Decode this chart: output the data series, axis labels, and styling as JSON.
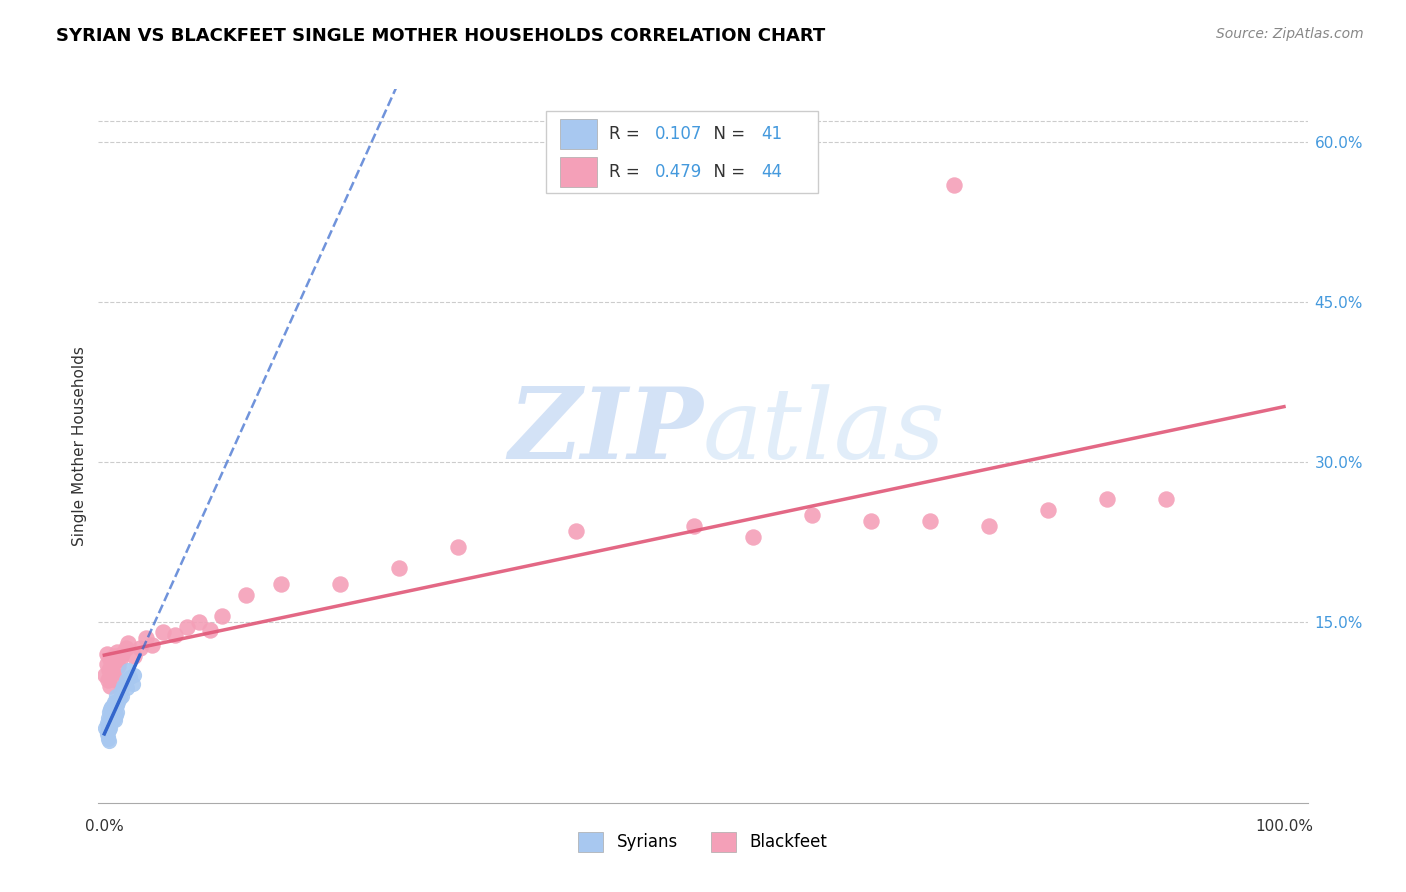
{
  "title": "SYRIAN VS BLACKFEET SINGLE MOTHER HOUSEHOLDS CORRELATION CHART",
  "source": "Source: ZipAtlas.com",
  "ylabel": "Single Mother Households",
  "r_syrian": 0.107,
  "n_syrian": 41,
  "r_blackfeet": 0.479,
  "n_blackfeet": 44,
  "syrian_color": "#a8c8f0",
  "blackfeet_color": "#f4a0b8",
  "syrian_line_color": "#3366cc",
  "blackfeet_line_color": "#e05878",
  "tick_color": "#4499dd",
  "grid_color": "#cccccc",
  "watermark_color": "#ccddf5",
  "syrians_x": [
    0.001,
    0.002,
    0.002,
    0.003,
    0.003,
    0.003,
    0.004,
    0.004,
    0.004,
    0.005,
    0.005,
    0.005,
    0.006,
    0.006,
    0.006,
    0.007,
    0.007,
    0.007,
    0.008,
    0.008,
    0.008,
    0.009,
    0.009,
    0.01,
    0.01,
    0.01,
    0.011,
    0.011,
    0.012,
    0.013,
    0.014,
    0.015,
    0.016,
    0.018,
    0.019,
    0.02,
    0.022,
    0.024,
    0.025,
    0.003,
    0.004
  ],
  "syrians_y": [
    0.05,
    0.055,
    0.045,
    0.06,
    0.05,
    0.04,
    0.065,
    0.055,
    0.048,
    0.058,
    0.05,
    0.068,
    0.06,
    0.055,
    0.07,
    0.062,
    0.058,
    0.072,
    0.065,
    0.06,
    0.075,
    0.068,
    0.058,
    0.07,
    0.062,
    0.08,
    0.072,
    0.065,
    0.075,
    0.078,
    0.085,
    0.08,
    0.09,
    0.095,
    0.088,
    0.105,
    0.098,
    0.092,
    0.1,
    0.042,
    0.038
  ],
  "blackfeet_x": [
    0.001,
    0.002,
    0.002,
    0.003,
    0.004,
    0.005,
    0.005,
    0.006,
    0.007,
    0.008,
    0.009,
    0.01,
    0.011,
    0.012,
    0.013,
    0.015,
    0.018,
    0.02,
    0.025,
    0.03,
    0.035,
    0.04,
    0.05,
    0.06,
    0.07,
    0.08,
    0.09,
    0.1,
    0.12,
    0.15,
    0.2,
    0.25,
    0.3,
    0.4,
    0.5,
    0.55,
    0.6,
    0.65,
    0.7,
    0.75,
    0.8,
    0.85,
    0.9,
    0.72
  ],
  "blackfeet_y": [
    0.1,
    0.11,
    0.12,
    0.095,
    0.105,
    0.115,
    0.09,
    0.108,
    0.102,
    0.112,
    0.118,
    0.095,
    0.122,
    0.108,
    0.115,
    0.12,
    0.125,
    0.13,
    0.118,
    0.125,
    0.135,
    0.128,
    0.14,
    0.138,
    0.145,
    0.15,
    0.142,
    0.155,
    0.175,
    0.185,
    0.185,
    0.2,
    0.22,
    0.235,
    0.24,
    0.23,
    0.25,
    0.245,
    0.245,
    0.24,
    0.255,
    0.265,
    0.265,
    0.56
  ],
  "yticks": [
    0.0,
    0.15,
    0.3,
    0.45,
    0.6
  ],
  "ytick_labels": [
    "",
    "15.0%",
    "30.0%",
    "45.0%",
    "60.0%"
  ],
  "ymax": 0.65,
  "ymin": -0.02,
  "xmin": -0.005,
  "xmax": 1.02
}
